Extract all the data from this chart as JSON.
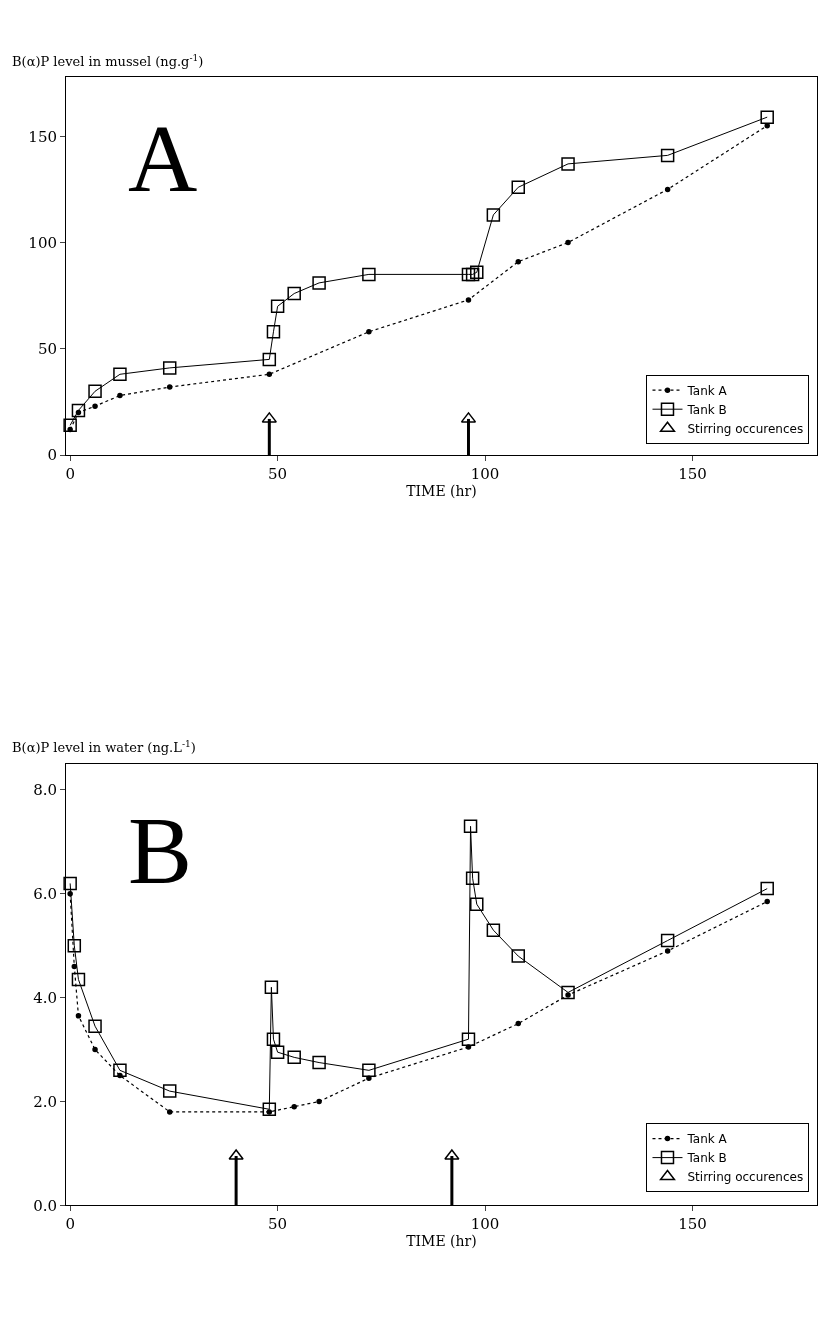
{
  "chart_data": [
    {
      "type": "line",
      "title": "B(α)P level in mussel (ng.g$^{-1}$)",
      "xlabel": "TIME (hr)",
      "annotations": [
        "A"
      ],
      "xlim": [
        -1,
        180
      ],
      "xticks": [
        0,
        50,
        100,
        150
      ],
      "ylim": [
        0,
        178
      ],
      "yticks": [
        0,
        50,
        100,
        150
      ],
      "legend": "bottom right",
      "series": [
        {
          "name": "Tank A",
          "color": "#000000",
          "marker": "circle",
          "line_style": "dotted",
          "x": [
            0,
            2,
            6,
            12,
            24,
            48,
            72,
            96,
            108,
            120,
            144,
            168
          ],
          "values": [
            12,
            20,
            23,
            28,
            32,
            38,
            58,
            73,
            91,
            100,
            125,
            155
          ]
        },
        {
          "name": "Tank B",
          "color": "#000000",
          "marker": "square",
          "line_style": "solid",
          "x": [
            0,
            2,
            6,
            12,
            24,
            48,
            49,
            50,
            54,
            60,
            72,
            96,
            97,
            98,
            102,
            108,
            120,
            144,
            168
          ],
          "values": [
            14,
            21,
            30,
            38,
            41,
            45,
            58,
            70,
            76,
            81,
            85,
            85,
            85,
            86,
            113,
            126,
            137,
            141,
            159
          ]
        },
        {
          "name": "Stirring occurences",
          "type": "scatter",
          "color": "#000000",
          "marker": "triangle",
          "x": [
            48,
            96
          ],
          "values": [
            17,
            17
          ],
          "errors": [
            [
              0,
              17
            ],
            [
              0,
              17
            ]
          ]
        }
      ]
    },
    {
      "type": "line",
      "title": "B(α)P level in water (ng.L$^{-1}$)",
      "xlabel": "TIME (hr)",
      "annotations": [
        "B"
      ],
      "xlim": [
        -1,
        180
      ],
      "xticks": [
        0,
        50,
        100,
        150
      ],
      "ylim": [
        0,
        8.5
      ],
      "yticks": [
        {
          "value": 0,
          "label": "0.0"
        },
        {
          "value": 2,
          "label": "2.0"
        },
        {
          "value": 4,
          "label": "4.0"
        },
        {
          "value": 6,
          "label": "6.0"
        },
        {
          "value": 8,
          "label": "8.0"
        }
      ],
      "legend": "bottom right",
      "series": [
        {
          "name": "Tank A",
          "color": "#000000",
          "marker": "circle",
          "line_style": "dotted",
          "x": [
            0,
            1,
            2,
            6,
            12,
            24,
            48,
            54,
            60,
            72,
            96,
            108,
            120,
            144,
            168
          ],
          "values": [
            6.0,
            4.6,
            3.65,
            3.0,
            2.5,
            1.8,
            1.8,
            1.9,
            2.0,
            2.45,
            3.05,
            3.5,
            4.05,
            4.9,
            5.85
          ]
        },
        {
          "name": "Tank B",
          "color": "#000000",
          "marker": "square",
          "line_style": "solid",
          "x": [
            0,
            1,
            2,
            6,
            12,
            24,
            48,
            48.5,
            49,
            50,
            54,
            60,
            72,
            96,
            96.5,
            97,
            98,
            102,
            108,
            120,
            144,
            168
          ],
          "values": [
            6.2,
            5.0,
            4.35,
            3.45,
            2.6,
            2.2,
            1.85,
            4.2,
            3.2,
            2.95,
            2.85,
            2.75,
            2.6,
            3.2,
            7.3,
            6.3,
            5.8,
            5.3,
            4.8,
            4.1,
            5.1,
            6.1
          ]
        },
        {
          "name": "Stirring occurences",
          "type": "scatter",
          "color": "#000000",
          "marker": "triangle",
          "x": [
            40,
            92
          ],
          "values": [
            0.95,
            0.95
          ],
          "errors": [
            [
              0,
              0.95
            ],
            [
              0,
              0.95
            ]
          ]
        }
      ]
    }
  ]
}
